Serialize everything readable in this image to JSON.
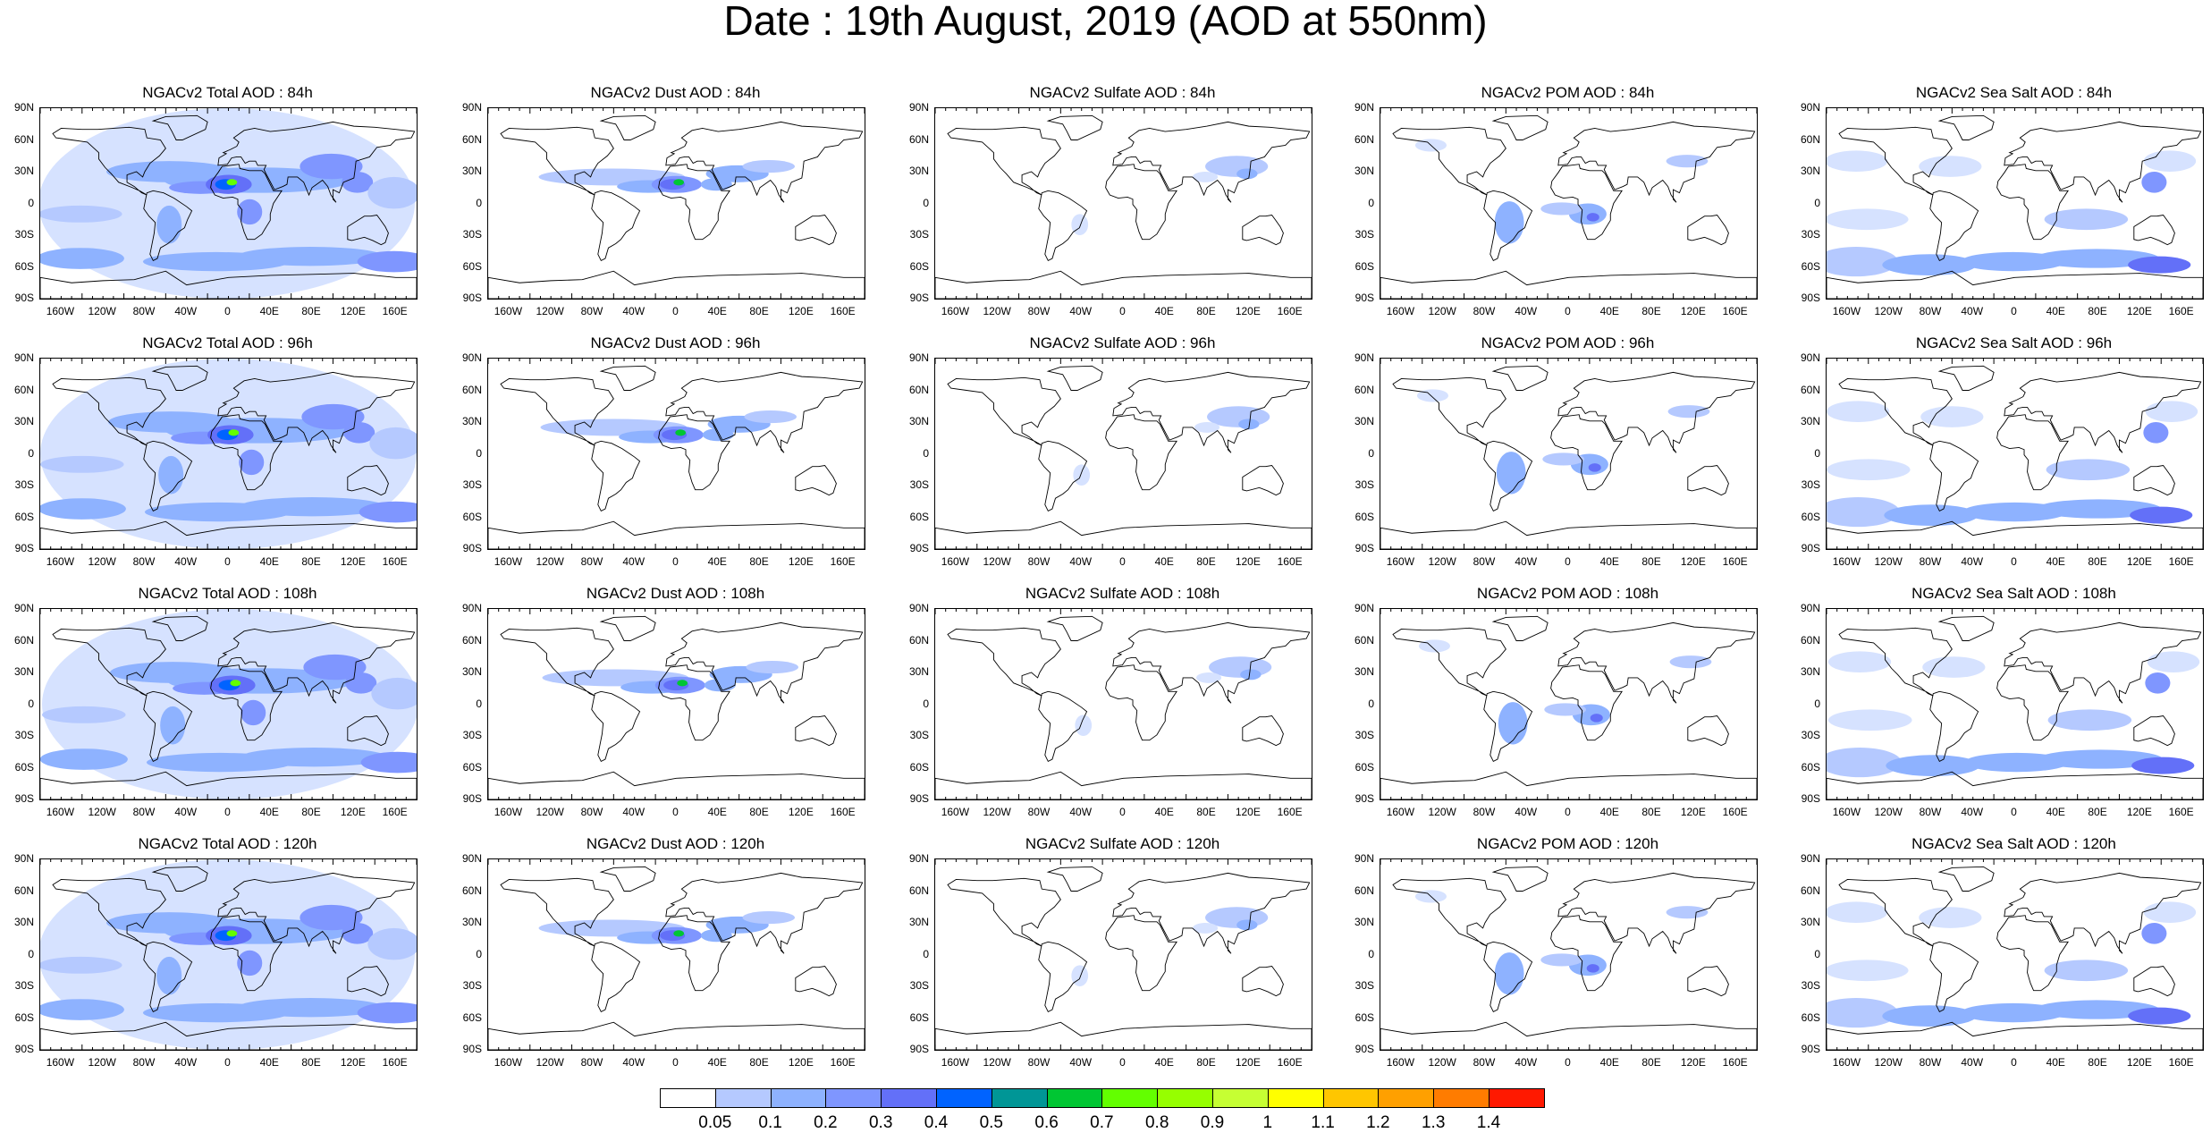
{
  "title": "Date : 19th August, 2019 (AOD at 550nm)",
  "lat_labels": [
    "90N",
    "60N",
    "30N",
    "0",
    "30S",
    "60S",
    "90S"
  ],
  "lon_labels": [
    "160W",
    "120W",
    "80W",
    "40W",
    "0",
    "40E",
    "80E",
    "120E",
    "160E"
  ],
  "columns": [
    "Total",
    "Dust",
    "Sulfate",
    "POM",
    "Sea Salt"
  ],
  "panels": [
    [
      "NGACv2 Total AOD : 84h",
      "NGACv2 Dust AOD : 84h",
      "NGACv2 Sulfate AOD : 84h",
      "NGACv2 POM AOD : 84h",
      "NGACv2 Sea Salt AOD : 84h"
    ],
    [
      "NGACv2 Total AOD : 96h",
      "NGACv2 Dust AOD : 96h",
      "NGACv2 Sulfate AOD : 96h",
      "NGACv2 POM AOD : 96h",
      "NGACv2 Sea Salt AOD : 96h"
    ],
    [
      "NGACv2 Total AOD : 108h",
      "NGACv2 Dust AOD : 108h",
      "NGACv2 Sulfate AOD : 108h",
      "NGACv2 POM AOD : 108h",
      "NGACv2 Sea Salt AOD : 108h"
    ],
    [
      "NGACv2 Total AOD : 120h",
      "NGACv2 Dust AOD : 120h",
      "NGACv2 Sulfate AOD : 120h",
      "NGACv2 POM AOD : 120h",
      "NGACv2 Sea Salt  AOD : 120h"
    ]
  ],
  "colorbar": {
    "labels": [
      "0.05",
      "0.1",
      "0.2",
      "0.3",
      "0.4",
      "0.5",
      "0.6",
      "0.7",
      "0.8",
      "0.9",
      "1",
      "1.1",
      "1.2",
      "1.3",
      "1.4"
    ],
    "colors": [
      "#ffffff",
      "#d6e2ff",
      "#b5c9ff",
      "#8eb2ff",
      "#7f96ff",
      "#6370f8",
      "#0063ff",
      "#009696",
      "#00c633",
      "#63ff00",
      "#96ff00",
      "#c6ff33",
      "#ffff00",
      "#ffc600",
      "#ffa000",
      "#ff7c00",
      "#ff1900"
    ]
  }
}
